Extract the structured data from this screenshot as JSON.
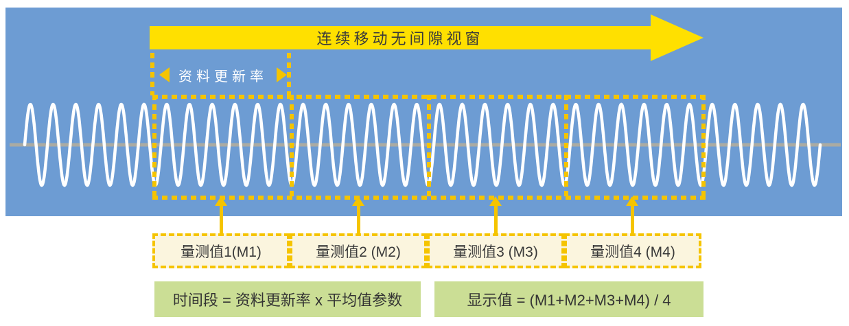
{
  "colors": {
    "panel_blue": "#6D9CD3",
    "arrow_yellow": "#FFE000",
    "dash_gold": "#F5C400",
    "box_cream": "#FBF5DE",
    "box_green": "#CBDE95",
    "text_dark": "#3A3A3A",
    "wave_white": "#FFFFFF",
    "baseline_gray": "#ABABA3"
  },
  "banner": {
    "label": "连续移动无间隙视窗"
  },
  "update_rate": {
    "label": "资料更新率"
  },
  "measurements": [
    {
      "label": "量测值1(M1)"
    },
    {
      "label": "量测值2 (M2)"
    },
    {
      "label": "量测值3 (M3)"
    },
    {
      "label": "量测值4 (M4)"
    }
  ],
  "formulas": [
    {
      "text": "时间段 = 资料更新率 x 平均值参数"
    },
    {
      "text": "显示值 = (M1+M2+M3+M4) / 4"
    }
  ]
}
